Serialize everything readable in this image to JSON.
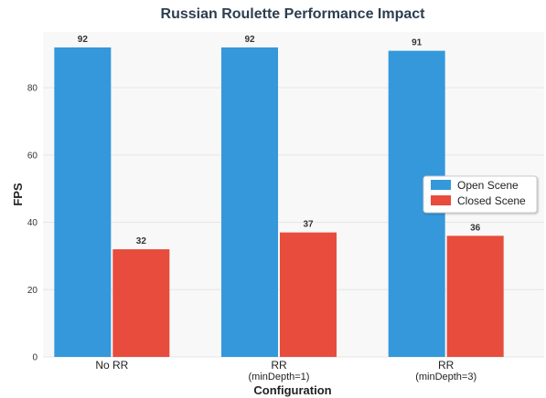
{
  "chart_data": {
    "type": "bar",
    "title": "Russian Roulette Performance Impact",
    "xlabel": "Configuration",
    "ylabel": "FPS",
    "categories": [
      [
        "No RR"
      ],
      [
        "RR",
        "(minDepth=1)"
      ],
      [
        "RR",
        "(minDepth=3)"
      ]
    ],
    "series": [
      {
        "name": "Open Scene",
        "values": [
          92,
          92,
          91
        ],
        "color": "#3498db"
      },
      {
        "name": "Closed Scene",
        "values": [
          32,
          37,
          36
        ],
        "color": "#e74c3c"
      }
    ],
    "ylim": [
      0,
      96.6
    ],
    "yticks": [
      0,
      20,
      40,
      60,
      80
    ],
    "grid": true,
    "legend_position": "center-right",
    "plot_background": "#f8f8f8"
  }
}
